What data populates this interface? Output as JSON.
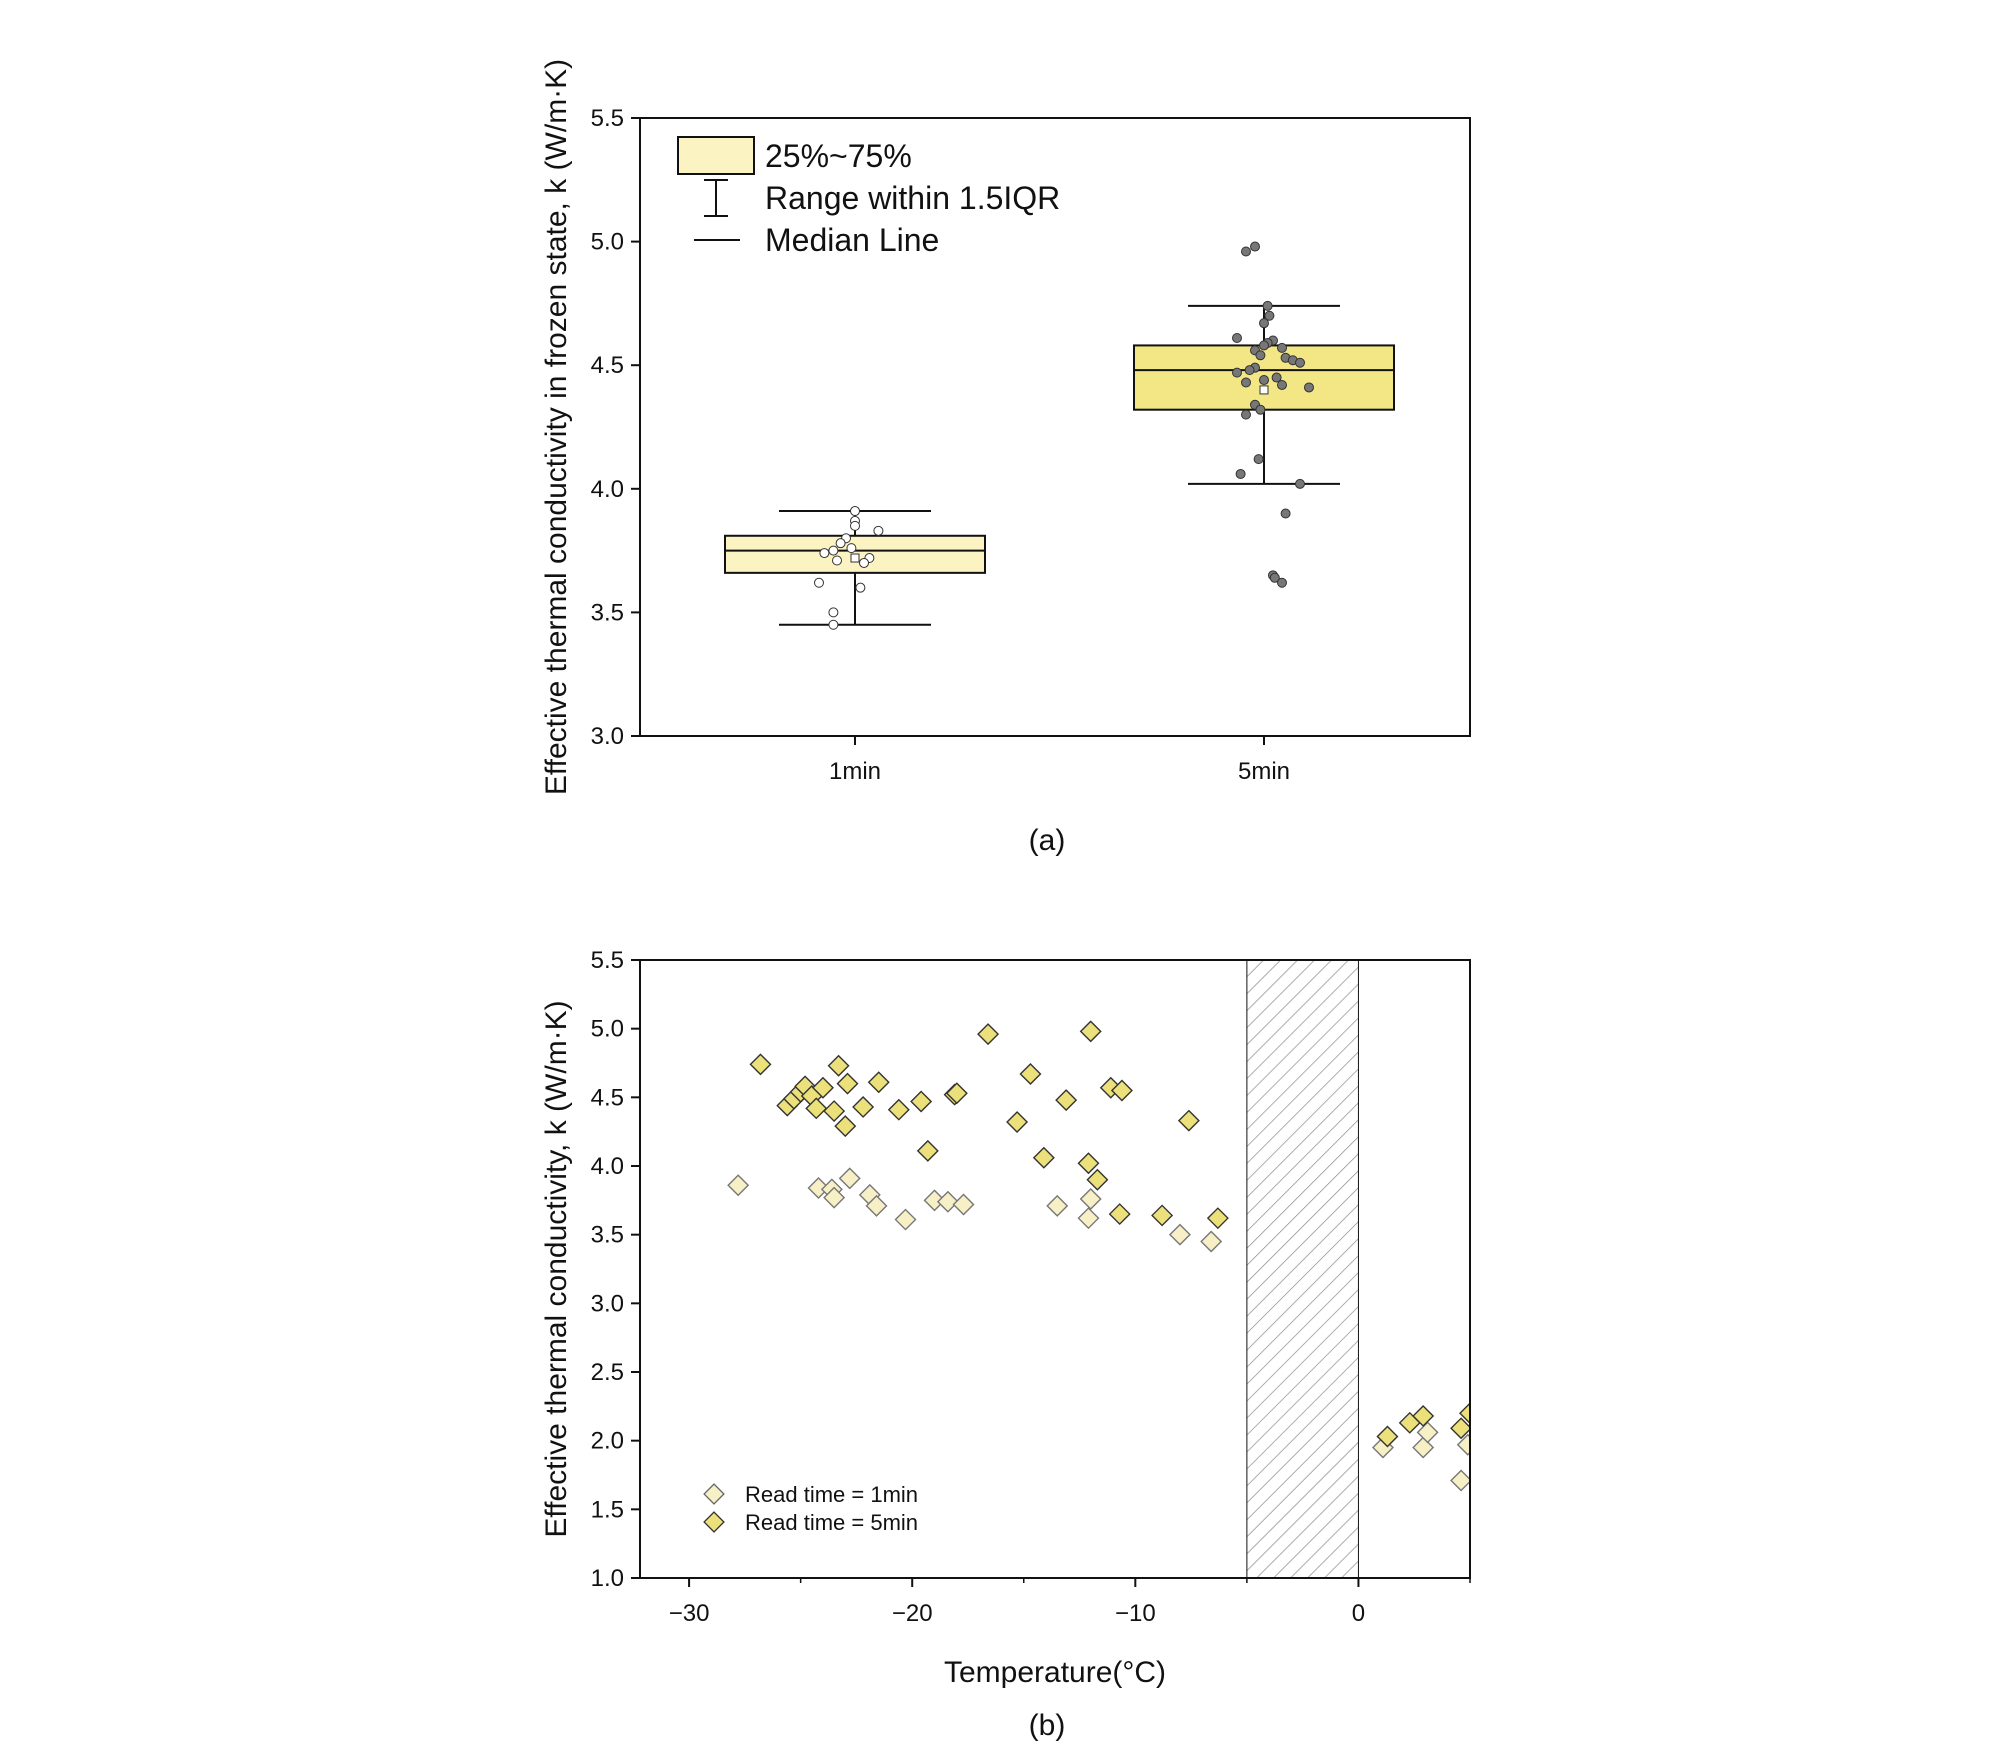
{
  "colors": {
    "box_light": "#fbf3c2",
    "box_dark": "#f3e685",
    "point_5min": "#777777",
    "point_1min": "#ffffff",
    "diamond_light": "#f7f0c6",
    "diamond_dark": "#ece07a",
    "axis": "#111111"
  },
  "chart_data": [
    {
      "type": "box",
      "panel": "a",
      "caption": "(a)",
      "ylabel": "Effective thermal conductivity in frozen state, k (W/m·K)",
      "ylim": [
        3.0,
        5.5
      ],
      "yticks": [
        "3.0",
        "3.5",
        "4.0",
        "4.5",
        "5.0",
        "5.5"
      ],
      "categories": [
        "1min",
        "5min"
      ],
      "legend": {
        "box": "25%~75%",
        "whisker": "Range within 1.5IQR",
        "median": "Median Line"
      },
      "boxes": [
        {
          "category": "1min",
          "q1": 3.66,
          "median": 3.75,
          "q3": 3.81,
          "whisker_low": 3.45,
          "whisker_high": 3.91,
          "mean": 3.72,
          "fill": "light",
          "points": [
            3.91,
            3.87,
            3.85,
            3.83,
            3.8,
            3.78,
            3.76,
            3.75,
            3.74,
            3.72,
            3.71,
            3.7,
            3.62,
            3.6,
            3.5,
            3.45
          ],
          "jitter": [
            0.0,
            0.0,
            0.0,
            0.13,
            -0.05,
            -0.08,
            -0.02,
            -0.12,
            -0.17,
            0.08,
            -0.1,
            0.05,
            -0.2,
            0.03,
            -0.12,
            -0.12
          ]
        },
        {
          "category": "5min",
          "q1": 4.32,
          "median": 4.48,
          "q3": 4.58,
          "whisker_low": 4.02,
          "whisker_high": 4.74,
          "mean": 4.4,
          "fill": "dark",
          "points": [
            4.98,
            4.96,
            4.74,
            4.7,
            4.67,
            4.61,
            4.6,
            4.59,
            4.58,
            4.57,
            4.56,
            4.54,
            4.53,
            4.52,
            4.51,
            4.49,
            4.48,
            4.47,
            4.45,
            4.44,
            4.43,
            4.42,
            4.41,
            4.34,
            4.32,
            4.3,
            4.12,
            4.06,
            4.02,
            3.9,
            3.65,
            3.64,
            3.62
          ],
          "jitter": [
            -0.05,
            -0.1,
            0.02,
            0.03,
            0.0,
            -0.15,
            0.05,
            0.02,
            0.0,
            0.1,
            -0.05,
            -0.02,
            0.12,
            0.16,
            0.2,
            -0.05,
            -0.08,
            -0.15,
            0.07,
            0.0,
            -0.1,
            0.1,
            0.25,
            -0.05,
            -0.02,
            -0.1,
            -0.03,
            -0.13,
            0.2,
            0.12,
            0.05,
            0.06,
            0.1
          ]
        }
      ]
    },
    {
      "type": "scatter",
      "panel": "b",
      "caption": "(b)",
      "xlabel": "Temperature(°C)",
      "ylabel": "Effective thermal conductivity, k (W/m·K)",
      "xlim": [
        -32.2,
        5
      ],
      "ylim": [
        1.0,
        5.5
      ],
      "xticks": [
        -30,
        -20,
        -10,
        0
      ],
      "xtick_labels": [
        "−30",
        "−20",
        "−10",
        "0"
      ],
      "yticks": [
        "1.0",
        "1.5",
        "2.0",
        "2.5",
        "3.0",
        "3.5",
        "4.0",
        "4.5",
        "5.0",
        "5.5"
      ],
      "hatched_region": [
        -5,
        0
      ],
      "legend_position": "bottom-left",
      "series": [
        {
          "name": "Read time = 1min",
          "fill": "light",
          "x": [
            -27.8,
            -24.2,
            -23.6,
            -23.5,
            -22.8,
            -21.9,
            -21.6,
            -20.3,
            -19.0,
            -18.4,
            -17.7,
            -13.5,
            -12.1,
            -12.0,
            -8.0,
            -6.6,
            1.1,
            2.9,
            3.1,
            4.6,
            4.9
          ],
          "y": [
            3.86,
            3.84,
            3.83,
            3.77,
            3.91,
            3.79,
            3.71,
            3.61,
            3.75,
            3.74,
            3.72,
            3.71,
            3.62,
            3.76,
            3.5,
            3.45,
            1.95,
            1.95,
            2.06,
            1.71,
            1.97
          ]
        },
        {
          "name": "Read time = 5min",
          "fill": "dark",
          "x": [
            -26.8,
            -25.6,
            -25.3,
            -25.0,
            -24.8,
            -24.5,
            -24.3,
            -24.0,
            -23.5,
            -23.3,
            -23.0,
            -22.9,
            -22.2,
            -21.5,
            -20.6,
            -19.6,
            -19.3,
            -18.1,
            -18.0,
            -16.6,
            -15.3,
            -14.7,
            -14.1,
            -13.1,
            -12.1,
            -12.0,
            -11.7,
            -11.1,
            -10.7,
            -10.6,
            -8.8,
            -7.6,
            -6.3,
            1.3,
            2.3,
            2.9,
            4.6,
            5.0
          ],
          "y": [
            4.74,
            4.44,
            4.49,
            4.54,
            4.58,
            4.51,
            4.42,
            4.57,
            4.4,
            4.73,
            4.29,
            4.6,
            4.43,
            4.61,
            4.41,
            4.47,
            4.11,
            4.52,
            4.53,
            4.96,
            4.32,
            4.67,
            4.06,
            4.48,
            4.02,
            4.98,
            3.9,
            4.57,
            3.65,
            4.55,
            3.64,
            4.33,
            3.62,
            2.03,
            2.13,
            2.18,
            2.09,
            2.2
          ]
        }
      ]
    }
  ]
}
